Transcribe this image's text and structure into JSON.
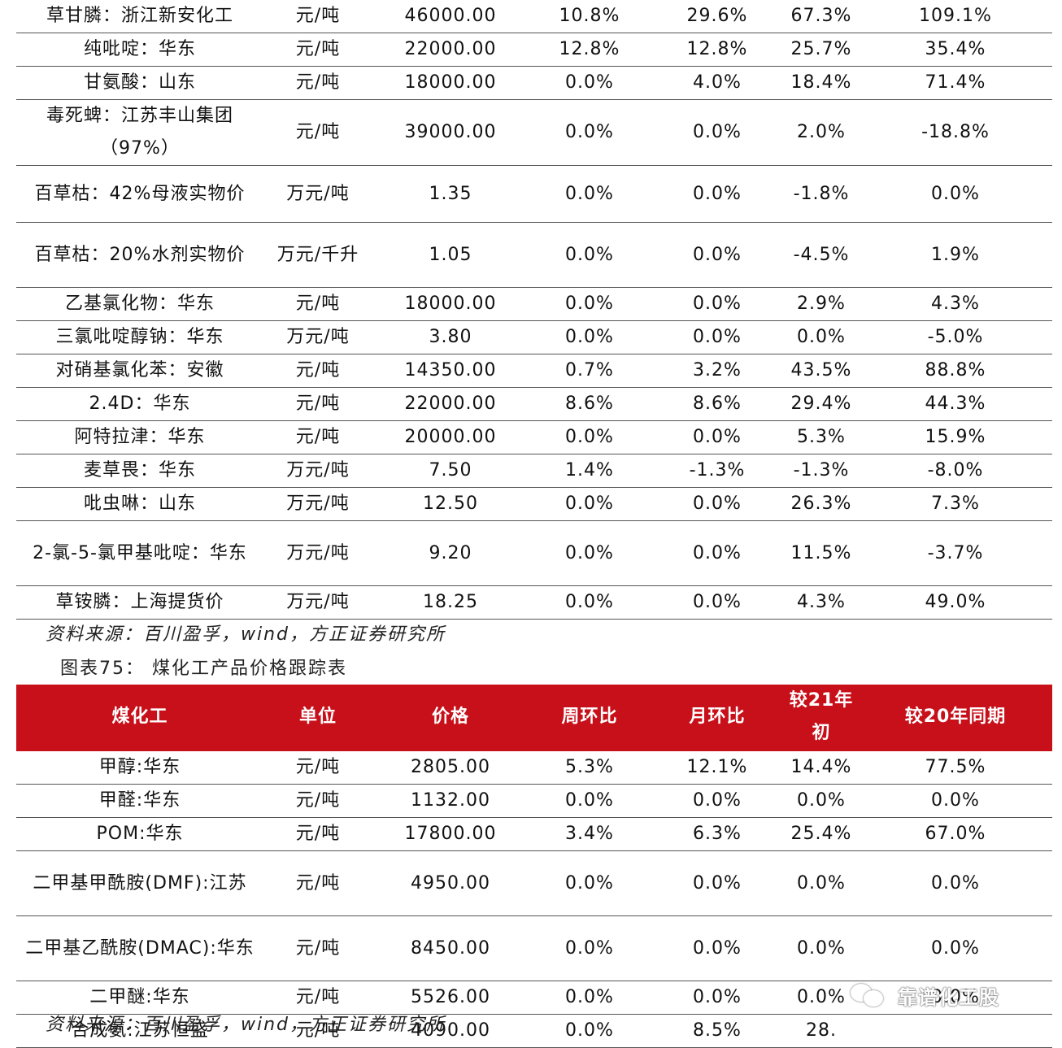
{
  "table1": {
    "rows": [
      {
        "name": "草甘膦：浙江新安化工",
        "unit": "元/吨",
        "price": "46000.00",
        "week": "10.8%",
        "month": "29.6%",
        "ytd": "67.3%",
        "yoy": "109.1%"
      },
      {
        "name": "纯吡啶：华东",
        "unit": "元/吨",
        "price": "22000.00",
        "week": "12.8%",
        "month": "12.8%",
        "ytd": "25.7%",
        "yoy": "35.4%"
      },
      {
        "name": "甘氨酸：山东",
        "unit": "元/吨",
        "price": "18000.00",
        "week": "0.0%",
        "month": "4.0%",
        "ytd": "18.4%",
        "yoy": "71.4%"
      },
      {
        "name": "毒死蜱：江苏丰山集团（97%）",
        "unit": "元/吨",
        "price": "39000.00",
        "week": "0.0%",
        "month": "0.0%",
        "ytd": "2.0%",
        "yoy": "-18.8%"
      },
      {
        "name": "百草枯：42%母液实物价",
        "unit": "万元/吨",
        "price": "1.35",
        "week": "0.0%",
        "month": "0.0%",
        "ytd": "-1.8%",
        "yoy": "0.0%"
      },
      {
        "name": "百草枯：20%水剂实物价",
        "unit": "万元/千升",
        "price": "1.05",
        "week": "0.0%",
        "month": "0.0%",
        "ytd": "-4.5%",
        "yoy": "1.9%"
      },
      {
        "name": "乙基氯化物：华东",
        "unit": "元/吨",
        "price": "18000.00",
        "week": "0.0%",
        "month": "0.0%",
        "ytd": "2.9%",
        "yoy": "4.3%"
      },
      {
        "name": "三氯吡啶醇钠：华东",
        "unit": "万元/吨",
        "price": "3.80",
        "week": "0.0%",
        "month": "0.0%",
        "ytd": "0.0%",
        "yoy": "-5.0%"
      },
      {
        "name": "对硝基氯化苯：安徽",
        "unit": "元/吨",
        "price": "14350.00",
        "week": "0.7%",
        "month": "3.2%",
        "ytd": "43.5%",
        "yoy": "88.8%"
      },
      {
        "name": "2.4D：华东",
        "unit": "元/吨",
        "price": "22000.00",
        "week": "8.6%",
        "month": "8.6%",
        "ytd": "29.4%",
        "yoy": "44.3%"
      },
      {
        "name": "阿特拉津：华东",
        "unit": "元/吨",
        "price": "20000.00",
        "week": "0.0%",
        "month": "0.0%",
        "ytd": "5.3%",
        "yoy": "15.9%"
      },
      {
        "name": "麦草畏：华东",
        "unit": "万元/吨",
        "price": "7.50",
        "week": "1.4%",
        "month": "-1.3%",
        "ytd": "-1.3%",
        "yoy": "-8.0%"
      },
      {
        "name": "吡虫啉：山东",
        "unit": "万元/吨",
        "price": "12.50",
        "week": "0.0%",
        "month": "0.0%",
        "ytd": "26.3%",
        "yoy": "7.3%"
      },
      {
        "name": "2-氯-5-氯甲基吡啶：华东",
        "unit": "万元/吨",
        "price": "9.20",
        "week": "0.0%",
        "month": "0.0%",
        "ytd": "11.5%",
        "yoy": "-3.7%"
      },
      {
        "name": "草铵膦：上海提货价",
        "unit": "万元/吨",
        "price": "18.25",
        "week": "0.0%",
        "month": "0.0%",
        "ytd": "4.3%",
        "yoy": "49.0%"
      }
    ],
    "source": "资料来源：百川盈孚，wind，方正证券研究所"
  },
  "table2": {
    "caption": "图表75： 煤化工产品价格跟踪表",
    "headers": [
      "煤化工",
      "单位",
      "价格",
      "周环比",
      "月环比",
      "较21年初",
      "较20年同期"
    ],
    "rows": [
      {
        "name": "甲醇:华东",
        "unit": "元/吨",
        "price": "2805.00",
        "week": "5.3%",
        "month": "12.1%",
        "ytd": "14.4%",
        "yoy": "77.5%"
      },
      {
        "name": "甲醛:华东",
        "unit": "元/吨",
        "price": "1132.00",
        "week": "0.0%",
        "month": "0.0%",
        "ytd": "0.0%",
        "yoy": "0.0%"
      },
      {
        "name": "POM:华东",
        "unit": "元/吨",
        "price": "17800.00",
        "week": "3.4%",
        "month": "6.3%",
        "ytd": "25.4%",
        "yoy": "67.0%"
      },
      {
        "name": "二甲基甲酰胺(DMF):江苏",
        "unit": "元/吨",
        "price": "4950.00",
        "week": "0.0%",
        "month": "0.0%",
        "ytd": "0.0%",
        "yoy": "0.0%"
      },
      {
        "name": "二甲基乙酰胺(DMAC):华东",
        "unit": "元/吨",
        "price": "8450.00",
        "week": "0.0%",
        "month": "0.0%",
        "ytd": "0.0%",
        "yoy": "0.0%"
      },
      {
        "name": "二甲醚:华东",
        "unit": "元/吨",
        "price": "5526.00",
        "week": "0.0%",
        "month": "0.0%",
        "ytd": "0.0%",
        "yoy": "0.0%"
      },
      {
        "name": "合成氨:江苏恒盛",
        "unit": "元/吨",
        "price": "4090.00",
        "week": "0.0%",
        "month": "8.5%",
        "ytd": "28.",
        "yoy": ""
      }
    ],
    "source": "资料来源：百川盈孚，wind，方正证券研究所"
  },
  "watermark": {
    "text": "靠谱化工股",
    "icon": "wechat-icon"
  }
}
